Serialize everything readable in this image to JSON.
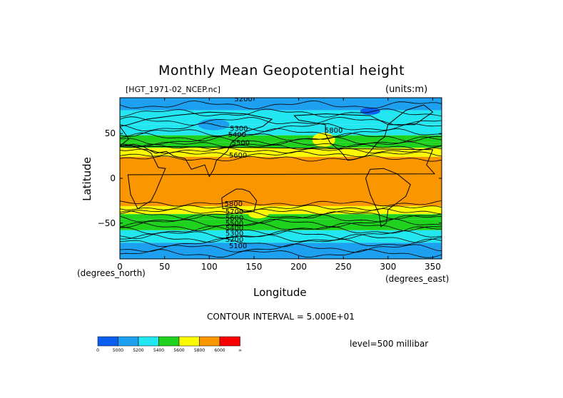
{
  "chart_data": {
    "type": "heatmap",
    "title": "Monthly Mean Geopotential height",
    "dataset_label": "[HGT_1971-02_NCEP.nc]",
    "units_label": "(units:m)",
    "xlabel": "Longitude",
    "ylabel": "Latitude",
    "x_units_left": "(degrees_north)",
    "x_units_right": "(degrees_east)",
    "xlim": [
      0,
      360
    ],
    "ylim": [
      -90,
      90
    ],
    "x_ticks": [
      0,
      50,
      100,
      150,
      200,
      250,
      300,
      350
    ],
    "y_ticks": [
      50,
      0,
      -50
    ],
    "y_tick_labels": [
      "50",
      "0",
      "−50"
    ],
    "contour_interval_text": "CONTOUR INTERVAL = 5.000E+01",
    "level_text": "level=500 millibar",
    "contour_labels": [
      {
        "text": "5200",
        "lon": 128,
        "lat": 86
      },
      {
        "text": "5300",
        "lon": 123,
        "lat": 53
      },
      {
        "text": "5400",
        "lon": 121,
        "lat": 46
      },
      {
        "text": "5500",
        "lon": 125,
        "lat": 37
      },
      {
        "text": "5600",
        "lon": 122,
        "lat": 23
      },
      {
        "text": "5800",
        "lon": 229,
        "lat": 51
      },
      {
        "text": "5800",
        "lon": 117,
        "lat": -31
      },
      {
        "text": "5700",
        "lon": 118,
        "lat": -40
      },
      {
        "text": "5600",
        "lon": 118,
        "lat": -47
      },
      {
        "text": "5500",
        "lon": 118,
        "lat": -53
      },
      {
        "text": "5400",
        "lon": 118,
        "lat": -58
      },
      {
        "text": "5300",
        "lon": 118,
        "lat": -64
      },
      {
        "text": "5200",
        "lon": 118,
        "lat": -71
      },
      {
        "text": "5100",
        "lon": 122,
        "lat": -78
      }
    ],
    "lat_bands": [
      {
        "from": 90,
        "to": 76,
        "value": 5100
      },
      {
        "from": 76,
        "to": 60,
        "value": 5200
      },
      {
        "from": 60,
        "to": 48,
        "value": 5300
      },
      {
        "from": 48,
        "to": 40,
        "value": 5400
      },
      {
        "from": 40,
        "to": 34,
        "value": 5500
      },
      {
        "from": 34,
        "to": 24,
        "value": 5700
      },
      {
        "from": 24,
        "to": -31,
        "value": 5850
      },
      {
        "from": -31,
        "to": -40,
        "value": 5700
      },
      {
        "from": -40,
        "to": -46,
        "value": 5500
      },
      {
        "from": -46,
        "to": -58,
        "value": 5400
      },
      {
        "from": -58,
        "to": -72,
        "value": 5300
      },
      {
        "from": -72,
        "to": -90,
        "value": 5100
      }
    ],
    "colorbar": {
      "colors": [
        "#0a5ff0",
        "#1ea0f0",
        "#22e6f0",
        "#1ed21e",
        "#fafa00",
        "#fa9600",
        "#fa0000"
      ],
      "tick_labels": [
        "0",
        "5000",
        "5200",
        "5400",
        "5600",
        "5800",
        "6000",
        "∞"
      ]
    }
  }
}
